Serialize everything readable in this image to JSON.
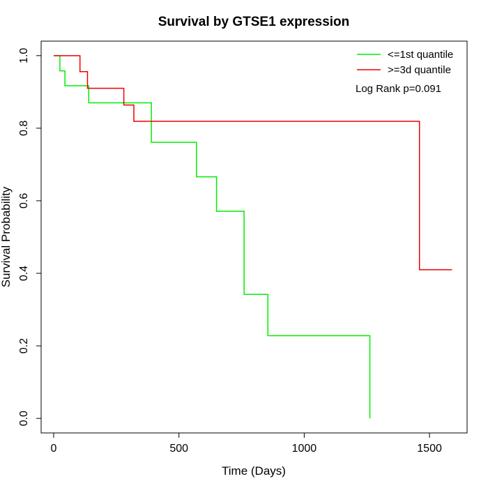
{
  "chart_data": {
    "type": "line",
    "step": true,
    "title": "Survival by GTSE1 expression",
    "xlabel": "Time (Days)",
    "ylabel": "Survival Probability",
    "xlim": [
      -50,
      1650
    ],
    "ylim": [
      -0.04,
      1.04
    ],
    "x_ticks": [
      0,
      500,
      1000,
      1500
    ],
    "y_ticks": [
      0.0,
      0.2,
      0.4,
      0.6,
      0.8,
      1.0
    ],
    "x_tick_labels": [
      "0",
      "500",
      "1000",
      "1500"
    ],
    "y_tick_labels": [
      "0.0",
      "0.2",
      "0.4",
      "0.6",
      "0.8",
      "1.0"
    ],
    "grid": false,
    "legend_position": "top-right",
    "annotation": "Log Rank p=0.091",
    "series": [
      {
        "name": "<=1st quantile",
        "color": "#00ee00",
        "points": [
          [
            0,
            1.0
          ],
          [
            25,
            0.958
          ],
          [
            45,
            0.917
          ],
          [
            140,
            0.87
          ],
          [
            350,
            0.87
          ],
          [
            390,
            0.761
          ],
          [
            570,
            0.666
          ],
          [
            650,
            0.571
          ],
          [
            760,
            0.342
          ],
          [
            855,
            0.228
          ],
          [
            1262,
            0.228
          ],
          [
            1262,
            0.0
          ]
        ]
      },
      {
        "name": ">=3d quantile",
        "color": "#ee0000",
        "points": [
          [
            0,
            1.0
          ],
          [
            105,
            0.956
          ],
          [
            135,
            0.91
          ],
          [
            280,
            0.864
          ],
          [
            320,
            0.819
          ],
          [
            1460,
            0.819
          ],
          [
            1460,
            0.41
          ],
          [
            1590,
            0.41
          ]
        ]
      }
    ]
  }
}
